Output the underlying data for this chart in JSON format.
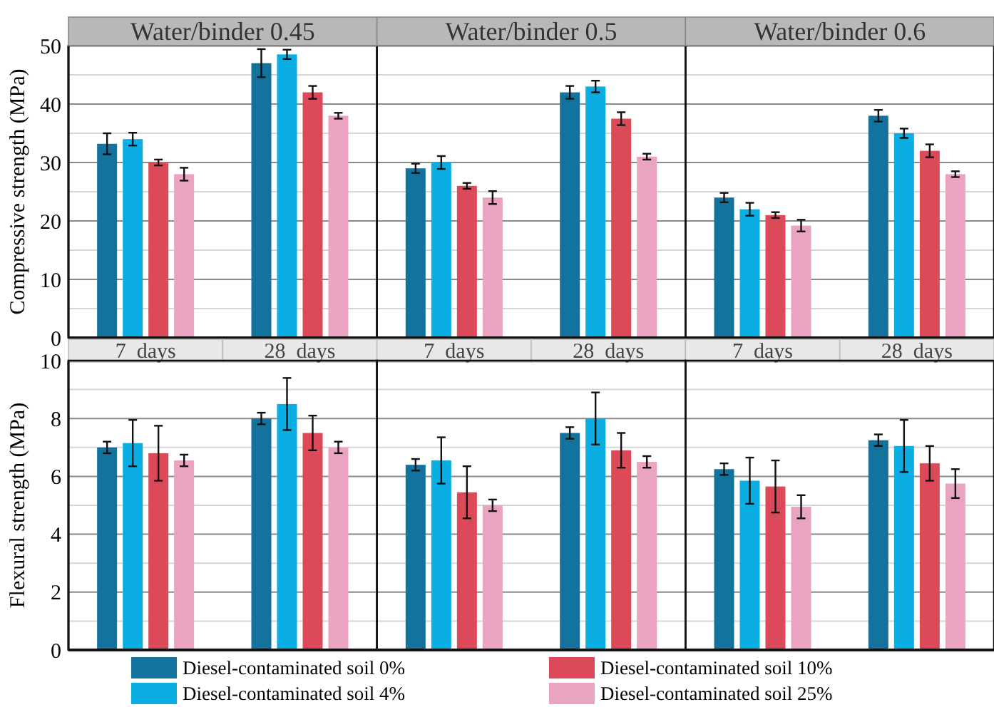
{
  "chart_data": [
    {
      "type": "bar",
      "ylabel": "Compressive strength (MPa)",
      "annotations": [
        "Water/binder 0.45",
        "Water/binder 0.5",
        "Water/binder 0.6"
      ],
      "categories": [
        "7  days",
        "28  days",
        "7  days",
        "28  days",
        "7  days",
        "28  days"
      ],
      "ylim": [
        0,
        50
      ],
      "yticks": [
        0,
        {
          "value": 5,
          "label": null
        },
        10,
        {
          "value": 15,
          "label": null
        },
        20,
        {
          "value": 25,
          "label": null
        },
        30,
        {
          "value": 35,
          "label": null
        },
        40,
        {
          "value": 45,
          "label": null
        },
        50
      ],
      "grid": "y",
      "series": [
        {
          "color": "#14739c",
          "values": [
            33.2,
            47,
            29,
            42,
            24,
            38
          ],
          "errors": [
            1.8,
            2.4,
            0.8,
            1.1,
            0.8,
            1
          ]
        },
        {
          "color": "#0aaee3",
          "values": [
            34,
            48.5,
            30,
            43,
            22,
            35
          ],
          "errors": [
            1.1,
            0.8,
            1.1,
            1,
            1.1,
            0.8
          ]
        },
        {
          "color": "#dc4a5a",
          "values": [
            30,
            42,
            26,
            37.5,
            21,
            32
          ],
          "errors": [
            0.5,
            1.1,
            0.5,
            1.1,
            0.5,
            1.1
          ]
        },
        {
          "color": "#eaa3c0",
          "values": [
            28,
            38,
            24,
            31,
            19.2,
            28
          ],
          "errors": [
            1.1,
            0.5,
            1.1,
            0.5,
            1,
            0.5
          ]
        }
      ]
    },
    {
      "type": "bar",
      "ylabel": "Flexural strength (MPa)",
      "categories": [
        null,
        null,
        null,
        null,
        null,
        null
      ],
      "ylim": [
        0,
        10
      ],
      "yticks": [
        0,
        {
          "value": 1,
          "label": null
        },
        2,
        {
          "value": 3,
          "label": null
        },
        4,
        {
          "value": 5,
          "label": null
        },
        6,
        {
          "value": 7,
          "label": null
        },
        8,
        {
          "value": 9,
          "label": null
        },
        10
      ],
      "grid": "y",
      "tick_labels": "y",
      "legend": "bottom",
      "series": [
        {
          "name": "Diesel-contaminated soil 0%",
          "color": "#14739c",
          "values": [
            7,
            8,
            6.4,
            7.5,
            6.25,
            7.25
          ],
          "errors": [
            0.2,
            0.2,
            0.2,
            0.2,
            0.2,
            0.2
          ]
        },
        {
          "name": "Diesel-contaminated soil 4%",
          "color": "#0aaee3",
          "values": [
            7.15,
            8.5,
            6.55,
            8,
            5.85,
            7.05
          ],
          "errors": [
            0.8,
            0.9,
            0.8,
            0.9,
            0.8,
            0.9
          ]
        },
        {
          "name": "Diesel-contaminated soil 10%",
          "color": "#dc4a5a",
          "values": [
            6.8,
            7.5,
            5.45,
            6.9,
            5.65,
            6.45
          ],
          "errors": [
            0.95,
            0.6,
            0.9,
            0.6,
            0.9,
            0.6
          ]
        },
        {
          "name": "Diesel-contaminated soil 25%",
          "color": "#eaa3c0",
          "values": [
            6.55,
            7,
            5,
            6.5,
            4.95,
            5.75
          ],
          "errors": [
            0.2,
            0.2,
            0.2,
            0.2,
            0.4,
            0.5
          ]
        }
      ]
    }
  ]
}
